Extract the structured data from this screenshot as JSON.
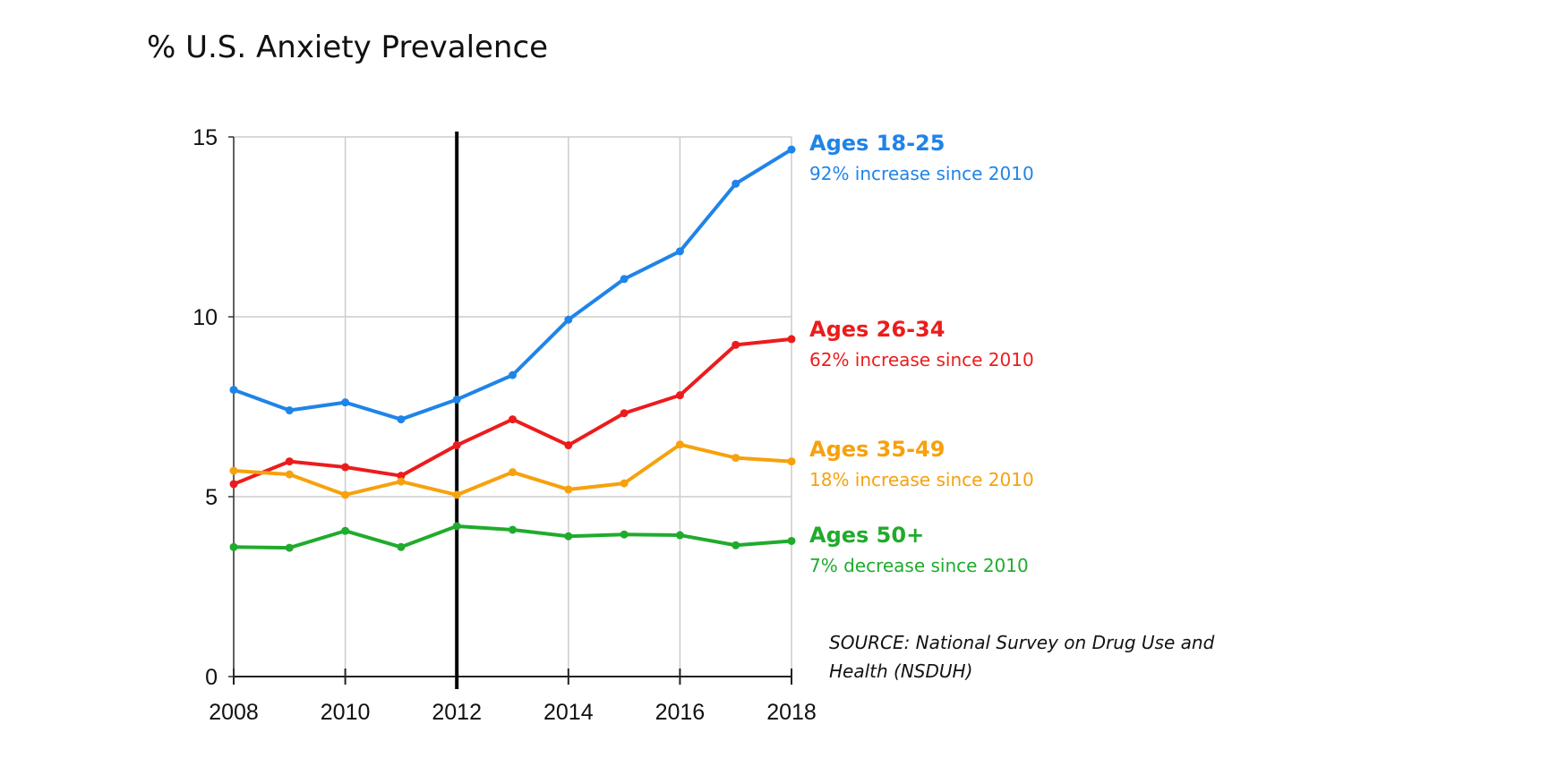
{
  "chart_data": {
    "type": "line",
    "title": "% U.S. Anxiety Prevalence",
    "xlabel": "",
    "ylabel": "",
    "x": [
      2008,
      2009,
      2010,
      2011,
      2012,
      2013,
      2014,
      2015,
      2016,
      2017,
      2018
    ],
    "xlim": [
      2008,
      2018
    ],
    "ylim": [
      0,
      15
    ],
    "x_ticks": [
      "2008",
      "2010",
      "2012",
      "2014",
      "2016",
      "2018"
    ],
    "y_ticks": [
      "0",
      "5",
      "10",
      "15"
    ],
    "grid": true,
    "legend": "labels at right end of lines",
    "vertical_marker": {
      "x": 2012,
      "color": "#000000"
    },
    "series": [
      {
        "name": "Ages 18-25",
        "note": "92% increase since 2010",
        "color": "#1f84e8",
        "values": [
          7.97,
          7.4,
          7.62,
          7.15,
          7.7,
          8.38,
          9.92,
          11.05,
          11.82,
          13.7,
          14.65
        ]
      },
      {
        "name": "Ages 26-34",
        "note": "62% increase since 2010",
        "color": "#ec1c1c",
        "values": [
          5.35,
          5.98,
          5.82,
          5.58,
          6.43,
          7.15,
          6.43,
          7.32,
          7.82,
          9.22,
          9.38
        ]
      },
      {
        "name": "Ages 35-49",
        "note": "18% increase since 2010",
        "color": "#f7a10c",
        "values": [
          5.72,
          5.62,
          5.05,
          5.42,
          5.05,
          5.68,
          5.2,
          5.37,
          6.45,
          6.08,
          5.98
        ]
      },
      {
        "name": "Ages 50+",
        "note": "7% decrease since 2010",
        "color": "#20ab2c",
        "values": [
          3.6,
          3.58,
          4.05,
          3.6,
          4.18,
          4.08,
          3.9,
          3.95,
          3.93,
          3.65,
          3.77
        ]
      }
    ],
    "source": [
      "SOURCE: National Survey on Drug Use and",
      "Health (NSDUH)"
    ]
  }
}
